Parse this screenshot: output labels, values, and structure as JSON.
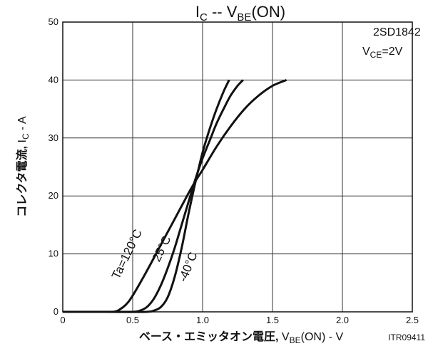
{
  "chart_data": {
    "type": "line",
    "title": "IC -- VBE(ON)",
    "title_parts": {
      "main": "I",
      "sub": "C",
      "sep": " -- V",
      "sub2": "BE",
      "tail": "(ON)"
    },
    "device": "2SD1842",
    "condition": {
      "prefix": "V",
      "sub": "CE",
      "value": "=2V"
    },
    "xlabel": {
      "jp": "ベース・エミッタオン電圧,",
      "mid": " V",
      "sub": "BE",
      "tail": "(ON) - V"
    },
    "ylabel": {
      "jp": "コレクタ電流,",
      "mid": " I",
      "sub": "C",
      "tail": " - A"
    },
    "code": "ITR09411",
    "xlim": [
      0,
      2.5
    ],
    "ylim": [
      0,
      50
    ],
    "xticks": [
      0,
      0.5,
      1.0,
      1.5,
      2.0,
      2.5
    ],
    "xtick_labels": [
      "0",
      "0.5",
      "1.0",
      "1.5",
      "2.0",
      "2.5"
    ],
    "yticks": [
      0,
      10,
      20,
      30,
      40,
      50
    ],
    "ytick_labels": [
      "0",
      "10",
      "20",
      "30",
      "40",
      "50"
    ],
    "grid": true,
    "series": [
      {
        "name": "Ta=120°C",
        "x": [
          0,
          0.2,
          0.35,
          0.38,
          0.4,
          0.45,
          0.5,
          0.6,
          0.7,
          0.8,
          0.9,
          0.95,
          1.0,
          1.1,
          1.2,
          1.3,
          1.4,
          1.5,
          1.6
        ],
        "y": [
          0,
          0,
          0,
          0.1,
          0.3,
          1.2,
          2.8,
          7.0,
          11.5,
          16.0,
          20.5,
          22.6,
          24.5,
          28.5,
          32.0,
          35.0,
          37.3,
          39.0,
          40
        ]
      },
      {
        "name": "25°C",
        "x": [
          0,
          0.3,
          0.5,
          0.55,
          0.6,
          0.65,
          0.7,
          0.75,
          0.8,
          0.85,
          0.9,
          0.95,
          1.0,
          1.05,
          1.1,
          1.15,
          1.2,
          1.25,
          1.29
        ],
        "y": [
          0,
          0,
          0,
          0.2,
          0.8,
          2.2,
          4.5,
          7.5,
          11.0,
          15.0,
          19.0,
          23.0,
          26.5,
          29.5,
          32.5,
          35.0,
          37.3,
          39.0,
          40
        ]
      },
      {
        "name": "-40°C",
        "x": [
          0,
          0.4,
          0.6,
          0.65,
          0.7,
          0.75,
          0.8,
          0.85,
          0.9,
          0.95,
          1.0,
          1.05,
          1.1,
          1.15,
          1.19
        ],
        "y": [
          0,
          0,
          0,
          0.2,
          0.8,
          2.5,
          6.0,
          11.0,
          17.0,
          22.5,
          27.5,
          31.5,
          35.0,
          38.0,
          40
        ]
      }
    ]
  }
}
